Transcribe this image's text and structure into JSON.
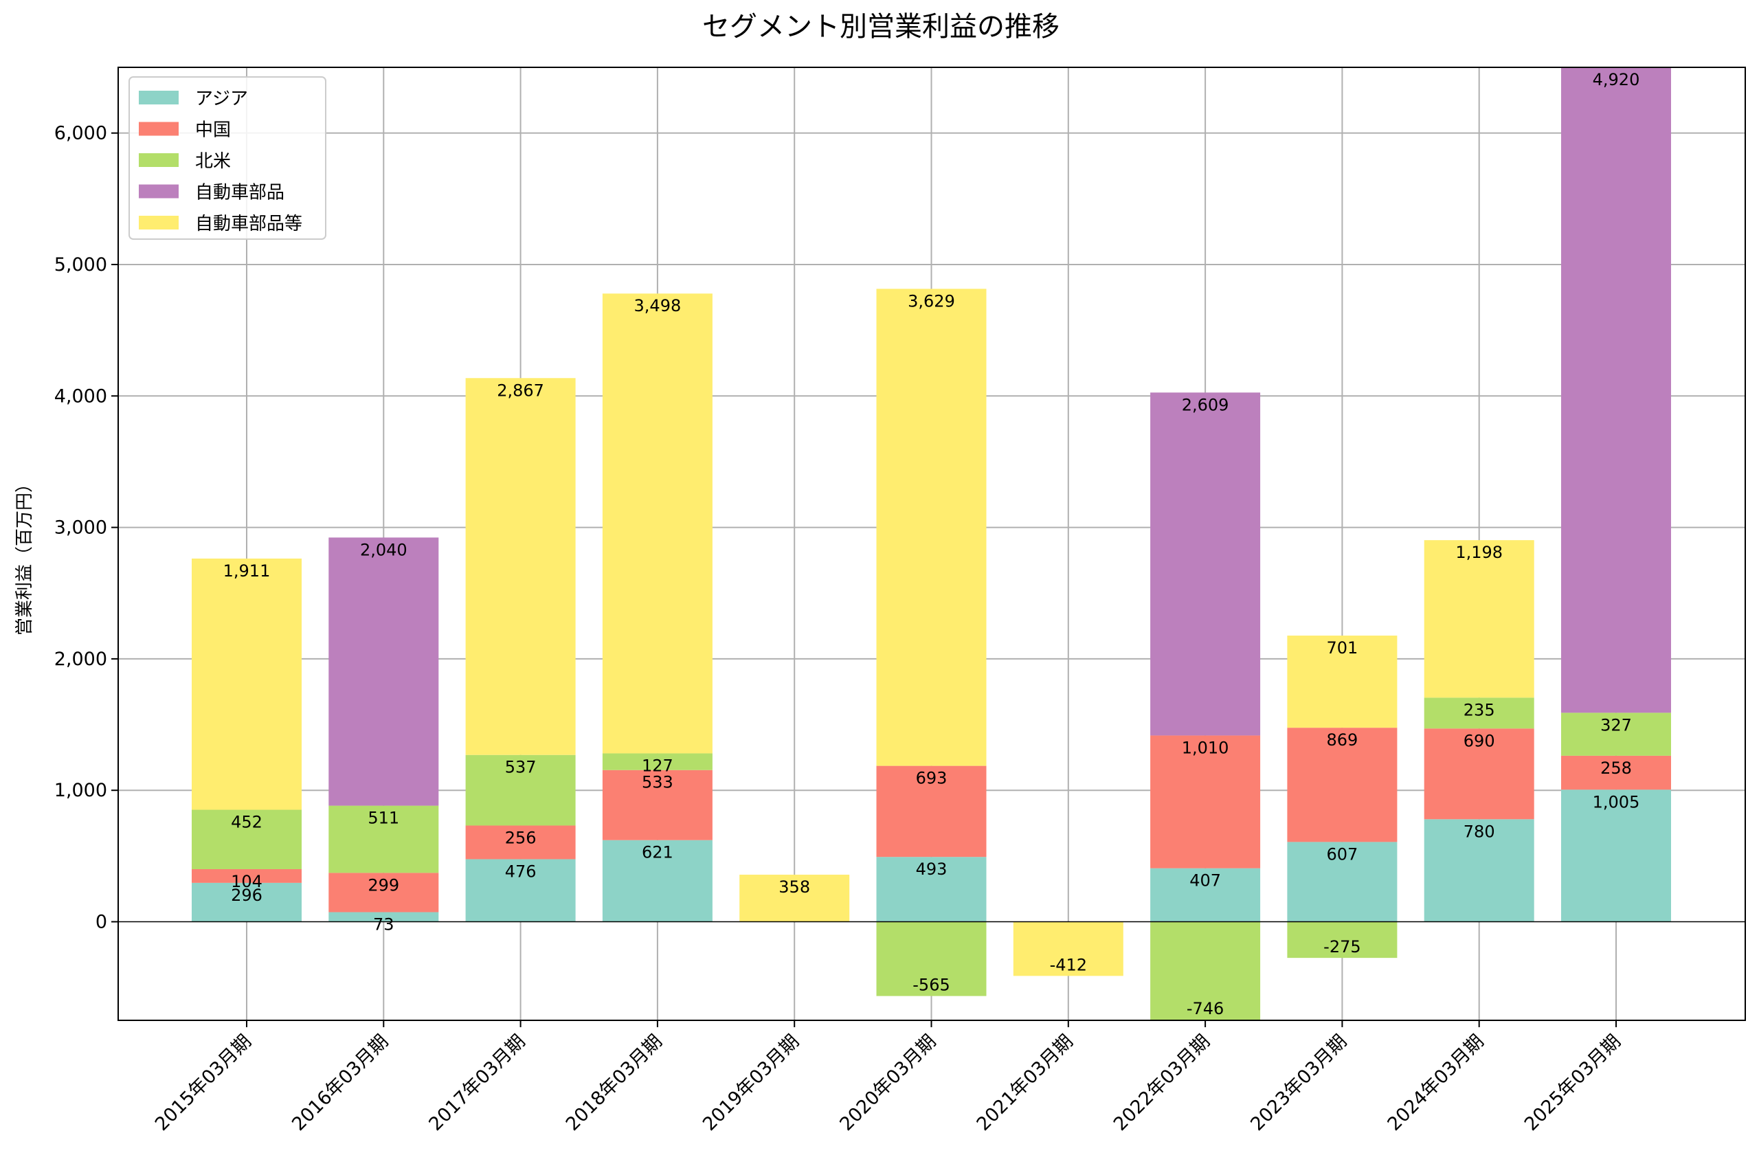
{
  "chart_data": {
    "type": "bar",
    "stacked": true,
    "title": "セグメント別営業利益の推移",
    "xlabel": "",
    "ylabel": "営業利益（百万円）",
    "ylim": [
      -750,
      6500
    ],
    "yticks": [
      0,
      1000,
      2000,
      3000,
      4000,
      5000,
      6000
    ],
    "ytick_labels": [
      "0",
      "1,000",
      "2,000",
      "3,000",
      "4,000",
      "5,000",
      "6,000"
    ],
    "grid": true,
    "legend_position": "top-left",
    "categories": [
      "2015年03月期",
      "2016年03月期",
      "2017年03月期",
      "2018年03月期",
      "2019年03月期",
      "2020年03月期",
      "2021年03月期",
      "2022年03月期",
      "2023年03月期",
      "2024年03月期",
      "2025年03月期"
    ],
    "series": [
      {
        "name": "アジア",
        "color": "#8dd3c7",
        "values": [
          296,
          73,
          476,
          621,
          null,
          493,
          null,
          407,
          607,
          780,
          1005
        ],
        "labels": [
          "296",
          "73",
          "476",
          "621",
          "",
          "493",
          "",
          "407",
          "607",
          "780",
          "1,005"
        ]
      },
      {
        "name": "中国",
        "color": "#fb8072",
        "values": [
          104,
          299,
          256,
          533,
          null,
          693,
          null,
          1010,
          869,
          690,
          258
        ],
        "labels": [
          "104",
          "299",
          "256",
          "533",
          "",
          "693",
          "",
          "1,010",
          "869",
          "690",
          "258"
        ]
      },
      {
        "name": "北米",
        "color": "#b3de69",
        "values": [
          452,
          511,
          537,
          127,
          null,
          -565,
          null,
          -746,
          -275,
          235,
          327
        ],
        "labels": [
          "452",
          "511",
          "537",
          "127",
          "",
          "-565",
          "",
          "-746",
          "-275",
          "235",
          "327"
        ]
      },
      {
        "name": "自動車部品",
        "color": "#bc80bd",
        "values": [
          null,
          2040,
          null,
          null,
          null,
          null,
          null,
          2609,
          null,
          null,
          4920
        ],
        "labels": [
          "",
          "2,040",
          "",
          "",
          "",
          "",
          "",
          "2,609",
          "",
          "",
          "4,920"
        ]
      },
      {
        "name": "自動車部品等",
        "color": "#ffed6f",
        "values": [
          1911,
          null,
          2867,
          3498,
          358,
          3629,
          -412,
          null,
          701,
          1198,
          null
        ],
        "labels": [
          "1,911",
          "",
          "2,867",
          "3,498",
          "358",
          "3,629",
          "-412",
          "",
          "701",
          "1,198",
          ""
        ]
      }
    ]
  }
}
